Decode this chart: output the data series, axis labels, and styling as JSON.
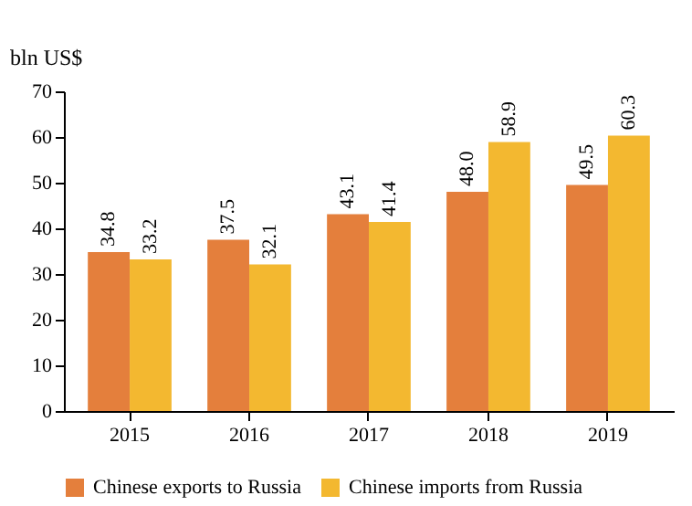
{
  "chart_data": {
    "type": "bar",
    "ylabel": "bln US$",
    "categories": [
      "2015",
      "2016",
      "2017",
      "2018",
      "2019"
    ],
    "series": [
      {
        "name": "Chinese exports to Russia",
        "color": "#e47f3c",
        "values": [
          34.8,
          37.5,
          43.1,
          48.0,
          49.5
        ],
        "value_labels": [
          "34.8",
          "37.5",
          "43.1",
          "48.0",
          "49.5"
        ]
      },
      {
        "name": "Chinese imports from Russia",
        "color": "#f3b830",
        "values": [
          33.2,
          32.1,
          41.4,
          58.9,
          60.3
        ],
        "value_labels": [
          "33.2",
          "32.1",
          "41.4",
          "58.9",
          "60.3"
        ]
      }
    ],
    "ylim": [
      0,
      70
    ],
    "yticks": [
      0,
      10,
      20,
      30,
      40,
      50,
      60,
      70
    ],
    "grid": false,
    "legend": "bottom"
  }
}
